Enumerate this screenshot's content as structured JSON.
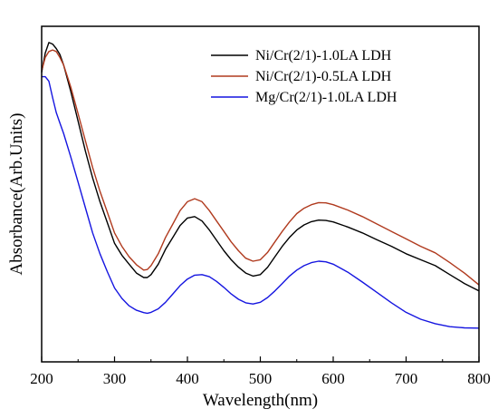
{
  "chart_data": {
    "type": "line",
    "xlabel": "Wavelength(nm)",
    "ylabel": "Absorbance(Arb.Units)",
    "xlim": [
      200,
      800
    ],
    "ylim": [
      0,
      1
    ],
    "x_ticks": [
      "200",
      "300",
      "400",
      "500",
      "600",
      "700",
      "800"
    ],
    "legend_position": "top-right",
    "grid": false,
    "series": [
      {
        "name": "Ni/Cr(2/1)-1.0LA LDH",
        "color": "#000000",
        "x": [
          200,
          205,
          210,
          215,
          220,
          225,
          230,
          240,
          250,
          260,
          270,
          280,
          290,
          300,
          310,
          320,
          330,
          340,
          345,
          350,
          360,
          370,
          380,
          390,
          400,
          410,
          420,
          430,
          440,
          450,
          460,
          470,
          480,
          490,
          500,
          510,
          520,
          530,
          540,
          550,
          560,
          570,
          580,
          590,
          600,
          620,
          640,
          660,
          680,
          700,
          720,
          740,
          760,
          780,
          800
        ],
        "y": [
          0.885,
          0.95,
          0.985,
          0.98,
          0.965,
          0.945,
          0.91,
          0.82,
          0.72,
          0.62,
          0.53,
          0.45,
          0.38,
          0.31,
          0.27,
          0.24,
          0.21,
          0.195,
          0.195,
          0.205,
          0.24,
          0.29,
          0.33,
          0.37,
          0.395,
          0.4,
          0.385,
          0.355,
          0.32,
          0.285,
          0.255,
          0.23,
          0.21,
          0.2,
          0.205,
          0.23,
          0.265,
          0.3,
          0.33,
          0.355,
          0.372,
          0.383,
          0.388,
          0.387,
          0.382,
          0.365,
          0.345,
          0.322,
          0.3,
          0.275,
          0.255,
          0.235,
          0.205,
          0.175,
          0.15
        ]
      },
      {
        "name": "Ni/Cr(2/1)-0.5LA LDH",
        "color": "#b03a1e",
        "x": [
          200,
          205,
          210,
          215,
          220,
          225,
          230,
          240,
          250,
          260,
          270,
          280,
          290,
          300,
          310,
          320,
          330,
          340,
          345,
          350,
          360,
          370,
          380,
          390,
          400,
          410,
          420,
          430,
          440,
          450,
          460,
          470,
          480,
          490,
          500,
          510,
          520,
          530,
          540,
          550,
          560,
          570,
          580,
          590,
          600,
          620,
          640,
          660,
          680,
          700,
          720,
          740,
          760,
          780,
          800
        ],
        "y": [
          0.89,
          0.935,
          0.955,
          0.96,
          0.955,
          0.935,
          0.91,
          0.835,
          0.745,
          0.655,
          0.565,
          0.485,
          0.415,
          0.345,
          0.3,
          0.265,
          0.238,
          0.22,
          0.222,
          0.235,
          0.275,
          0.33,
          0.375,
          0.42,
          0.45,
          0.46,
          0.45,
          0.42,
          0.385,
          0.35,
          0.315,
          0.285,
          0.26,
          0.25,
          0.255,
          0.28,
          0.315,
          0.35,
          0.382,
          0.41,
          0.428,
          0.44,
          0.447,
          0.446,
          0.44,
          0.422,
          0.4,
          0.375,
          0.35,
          0.325,
          0.3,
          0.278,
          0.245,
          0.21,
          0.17
        ]
      },
      {
        "name": "Mg/Cr(2/1)-1.0LA LDH",
        "color": "#1515e0",
        "x": [
          200,
          205,
          210,
          215,
          220,
          225,
          230,
          240,
          250,
          260,
          270,
          280,
          290,
          300,
          310,
          320,
          330,
          340,
          345,
          350,
          360,
          370,
          380,
          390,
          400,
          410,
          420,
          430,
          440,
          450,
          460,
          470,
          480,
          490,
          500,
          510,
          520,
          530,
          540,
          550,
          560,
          570,
          580,
          590,
          600,
          620,
          640,
          660,
          680,
          700,
          720,
          740,
          760,
          780,
          800
        ],
        "y": [
          0.87,
          0.87,
          0.855,
          0.8,
          0.75,
          0.715,
          0.68,
          0.6,
          0.515,
          0.43,
          0.345,
          0.275,
          0.215,
          0.16,
          0.125,
          0.1,
          0.085,
          0.077,
          0.075,
          0.078,
          0.09,
          0.112,
          0.14,
          0.168,
          0.19,
          0.203,
          0.205,
          0.198,
          0.182,
          0.162,
          0.14,
          0.122,
          0.11,
          0.106,
          0.112,
          0.128,
          0.15,
          0.175,
          0.2,
          0.22,
          0.235,
          0.245,
          0.25,
          0.248,
          0.24,
          0.213,
          0.18,
          0.145,
          0.11,
          0.078,
          0.055,
          0.04,
          0.03,
          0.026,
          0.025
        ]
      }
    ]
  }
}
